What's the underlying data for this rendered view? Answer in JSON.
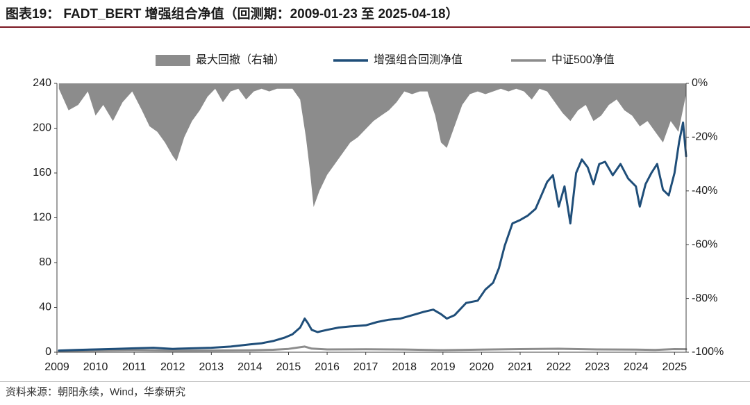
{
  "header": {
    "title": "图表19： FADT_BERT 增强组合净值（回测期：2009-01-23 至 2025-04-18）"
  },
  "footer": {
    "source": "资料来源：朝阳永续，Wind，华泰研究"
  },
  "colors": {
    "drawdown": "#8c8c8c",
    "enhanced": "#1f4e79",
    "csi500": "#8c8c8c",
    "axis": "#404040",
    "title_rule": "#7a1620"
  },
  "chart_data": {
    "type": "line",
    "title": "",
    "xlabel": "",
    "ylabel": "",
    "ylim": [
      0,
      240
    ],
    "y_ticks": [
      0,
      40,
      80,
      120,
      160,
      200,
      240
    ],
    "y2lim": [
      -100,
      0
    ],
    "y2_ticks": [
      "0%",
      "-20%",
      "-40%",
      "-60%",
      "-80%",
      "-100%"
    ],
    "x_range": [
      2009.0,
      2025.3
    ],
    "x_ticks": [
      "2009",
      "2010",
      "2011",
      "2012",
      "2013",
      "2014",
      "2015",
      "2016",
      "2017",
      "2018",
      "2019",
      "2020",
      "2021",
      "2022",
      "2023",
      "2024",
      "2025"
    ],
    "legend": {
      "position": "top-center",
      "labels": [
        "最大回撤（右轴）",
        "增强组合回测净值",
        "中证500净值"
      ]
    },
    "grid": false,
    "series": [
      {
        "name": "最大回撤（右轴）",
        "axis": "right",
        "kind": "area",
        "x": [
          2009.05,
          2009.3,
          2009.55,
          2009.8,
          2010.0,
          2010.2,
          2010.45,
          2010.7,
          2010.95,
          2011.2,
          2011.4,
          2011.6,
          2011.8,
          2012.0,
          2012.1,
          2012.3,
          2012.5,
          2012.7,
          2012.9,
          2013.1,
          2013.3,
          2013.5,
          2013.7,
          2013.9,
          2014.1,
          2014.3,
          2014.5,
          2014.7,
          2014.9,
          2015.1,
          2015.3,
          2015.45,
          2015.55,
          2015.65,
          2015.8,
          2016.0,
          2016.2,
          2016.4,
          2016.6,
          2016.8,
          2017.0,
          2017.2,
          2017.4,
          2017.6,
          2017.8,
          2018.0,
          2018.2,
          2018.4,
          2018.6,
          2018.8,
          2018.95,
          2019.1,
          2019.3,
          2019.5,
          2019.7,
          2019.9,
          2020.1,
          2020.3,
          2020.5,
          2020.7,
          2020.9,
          2021.1,
          2021.3,
          2021.5,
          2021.7,
          2021.9,
          2022.1,
          2022.3,
          2022.5,
          2022.7,
          2022.9,
          2023.1,
          2023.3,
          2023.5,
          2023.7,
          2023.9,
          2024.1,
          2024.3,
          2024.5,
          2024.7,
          2024.9,
          2025.1,
          2025.3
        ],
        "values": [
          -2,
          -10,
          -8,
          -3,
          -12,
          -8,
          -14,
          -7,
          -3,
          -10,
          -16,
          -18,
          -22,
          -27,
          -29,
          -20,
          -14,
          -10,
          -5,
          -2,
          -7,
          -3,
          -2,
          -6,
          -3,
          -2,
          -3,
          -2,
          -2,
          -2,
          -6,
          -20,
          -32,
          -46,
          -40,
          -34,
          -30,
          -26,
          -22,
          -20,
          -17,
          -14,
          -12,
          -10,
          -7,
          -3,
          -4,
          -3,
          -3,
          -12,
          -22,
          -24,
          -16,
          -8,
          -4,
          -3,
          -4,
          -3,
          -2,
          -3,
          -2,
          -3,
          -6,
          -2,
          -3,
          -7,
          -11,
          -14,
          -10,
          -8,
          -14,
          -12,
          -8,
          -6,
          -10,
          -12,
          -16,
          -14,
          -18,
          -22,
          -14,
          -18,
          -4
        ]
      },
      {
        "name": "增强组合回测净值",
        "axis": "left",
        "kind": "line",
        "x": [
          2009.05,
          2009.5,
          2010.0,
          2010.5,
          2011.0,
          2011.5,
          2012.0,
          2012.5,
          2013.0,
          2013.5,
          2014.0,
          2014.3,
          2014.6,
          2014.9,
          2015.1,
          2015.3,
          2015.42,
          2015.5,
          2015.6,
          2015.75,
          2016.0,
          2016.3,
          2016.6,
          2017.0,
          2017.3,
          2017.6,
          2017.9,
          2018.2,
          2018.5,
          2018.75,
          2018.95,
          2019.1,
          2019.3,
          2019.6,
          2019.9,
          2020.1,
          2020.3,
          2020.45,
          2020.6,
          2020.8,
          2021.0,
          2021.2,
          2021.4,
          2021.55,
          2021.7,
          2021.85,
          2022.0,
          2022.15,
          2022.3,
          2022.45,
          2022.6,
          2022.75,
          2022.9,
          2023.05,
          2023.2,
          2023.4,
          2023.6,
          2023.8,
          2024.0,
          2024.1,
          2024.25,
          2024.4,
          2024.55,
          2024.7,
          2024.85,
          2025.0,
          2025.12,
          2025.22,
          2025.3
        ],
        "values": [
          1.5,
          2,
          2.5,
          3,
          3.5,
          4,
          3,
          3.5,
          4,
          5,
          7,
          8,
          10,
          13,
          16,
          22,
          30,
          26,
          20,
          18,
          20,
          22,
          23,
          24,
          27,
          29,
          30,
          33,
          36,
          38,
          34,
          30,
          33,
          44,
          46,
          56,
          62,
          75,
          95,
          115,
          118,
          122,
          128,
          140,
          152,
          158,
          130,
          148,
          115,
          160,
          172,
          165,
          150,
          168,
          170,
          158,
          168,
          155,
          148,
          130,
          150,
          160,
          168,
          145,
          140,
          160,
          188,
          205,
          175
        ]
      },
      {
        "name": "中证500净值",
        "axis": "left",
        "kind": "line",
        "x": [
          2009.05,
          2010.0,
          2011.0,
          2012.0,
          2013.0,
          2014.0,
          2014.6,
          2015.0,
          2015.42,
          2015.6,
          2016.0,
          2017.0,
          2018.0,
          2019.0,
          2020.0,
          2021.0,
          2022.0,
          2022.5,
          2023.0,
          2024.0,
          2024.5,
          2025.0,
          2025.3
        ],
        "values": [
          1.0,
          1.5,
          1.8,
          1.4,
          1.5,
          1.7,
          2.2,
          3.0,
          5.0,
          3.2,
          2.5,
          2.6,
          2.4,
          1.8,
          2.3,
          2.8,
          3.1,
          2.8,
          2.5,
          2.3,
          2.0,
          2.8,
          2.7
        ]
      }
    ]
  }
}
